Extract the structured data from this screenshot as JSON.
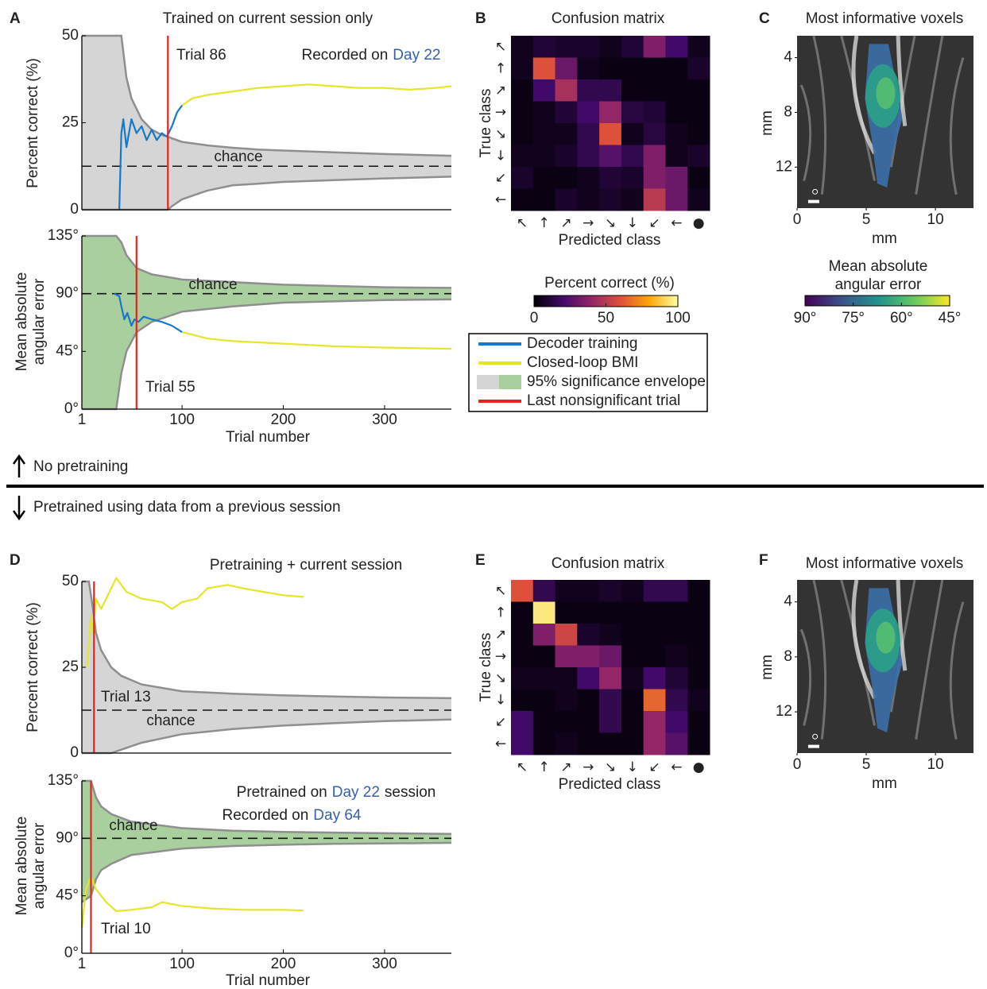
{
  "chart_data": [
    {
      "type": "line",
      "panel": "A",
      "title": "Trained on current session only",
      "y_label": [
        "Percent correct (%)"
      ],
      "xlim": [
        1,
        366
      ],
      "ylim": [
        0,
        50
      ],
      "yticks": [
        0,
        25,
        50
      ],
      "envelope": {
        "color": "#d5d5d5",
        "edge_color": "#8f8f8f",
        "x": [
          1,
          30,
          40,
          45,
          50,
          60,
          70,
          80,
          86,
          90,
          100,
          125,
          150,
          175,
          200,
          250,
          300,
          366
        ],
        "upper": [
          50,
          50,
          50,
          38,
          32,
          26,
          23,
          21.5,
          21,
          20.5,
          19.5,
          18.5,
          17.8,
          17.3,
          17,
          16.5,
          16,
          15.5
        ],
        "lower": [
          0,
          0,
          0,
          0,
          0,
          0,
          0,
          0,
          0,
          1,
          3,
          5.5,
          7,
          7.5,
          8,
          8.5,
          9,
          9.5
        ]
      },
      "reference_line": {
        "value": 12.5,
        "label": "chance"
      },
      "vline": {
        "value": 86,
        "label": "Trial 86",
        "color": "#e8231c"
      },
      "annotations": [
        [
          {
            "text": "Recorded on"
          },
          {
            "text": "Day 22",
            "color": "#3561ae"
          }
        ]
      ],
      "series": [
        {
          "color": "#1878c8",
          "x": [
            38,
            40,
            42,
            45,
            50,
            55,
            60,
            65,
            70,
            75,
            80,
            85,
            90,
            95,
            100
          ],
          "values": [
            0,
            22,
            26,
            18,
            26,
            22,
            24,
            20,
            23,
            20,
            22,
            21,
            24,
            28,
            30
          ]
        },
        {
          "color": "#e5e52a",
          "x": [
            100,
            110,
            125,
            150,
            175,
            200,
            225,
            250,
            275,
            300,
            325,
            350,
            366
          ],
          "values": [
            30,
            32,
            33,
            34,
            35,
            35.5,
            36,
            35.5,
            35,
            35,
            34.5,
            35,
            35.5
          ]
        }
      ]
    },
    {
      "type": "line",
      "y_label": [
        "Mean absolute",
        "angular error"
      ],
      "x_label": "Trial number",
      "xlim": [
        1,
        366
      ],
      "ylim": [
        0,
        135
      ],
      "xticks": [
        1,
        100,
        200,
        300
      ],
      "yticks": [
        {
          "value": 0,
          "label": "0°"
        },
        {
          "value": 45,
          "label": "45°"
        },
        {
          "value": 90,
          "label": "90°"
        },
        {
          "value": 135,
          "label": "135°"
        }
      ],
      "envelope": {
        "color": "#a9cf9f",
        "edge_color": "#8f8f8f",
        "x": [
          1,
          30,
          35,
          40,
          45,
          55,
          70,
          100,
          150,
          200,
          250,
          300,
          366
        ],
        "upper": [
          135,
          135,
          135,
          130,
          120,
          110,
          105,
          101,
          99,
          97,
          96,
          95,
          94.5
        ],
        "lower": [
          0,
          0,
          0,
          28,
          45,
          60,
          68,
          76,
          80,
          83,
          84,
          85,
          85.5
        ]
      },
      "reference_line": {
        "value": 90,
        "label": "chance"
      },
      "vline": {
        "value": 55,
        "label": "Trial 55",
        "color": "#e8231c"
      },
      "series": [
        {
          "color": "#1878c8",
          "x": [
            33,
            38,
            40,
            43,
            46,
            50,
            53,
            57,
            62,
            70,
            80,
            90,
            100
          ],
          "values": [
            90,
            88,
            80,
            70,
            75,
            65,
            70,
            68,
            72,
            70,
            68,
            65,
            60
          ]
        },
        {
          "color": "#e5e52a",
          "x": [
            100,
            110,
            125,
            150,
            200,
            250,
            300,
            366
          ],
          "values": [
            60,
            58,
            55,
            53,
            51,
            49,
            48,
            47
          ]
        }
      ]
    },
    {
      "type": "heatmap",
      "panel": "B",
      "title": "Confusion matrix",
      "x_label": "Predicted class",
      "y_label": "True class",
      "x_categories": [
        "↖",
        "↑",
        "↗",
        "→",
        "↘",
        "↓",
        "↙",
        "←",
        "●"
      ],
      "y_categories": [
        "↖",
        "↑",
        "↗",
        "→",
        "↘",
        "↓",
        "↙",
        "←"
      ],
      "clim": [
        0,
        100
      ],
      "colormap": "inferno",
      "values": [
        [
          5,
          10,
          8,
          8,
          5,
          10,
          35,
          20,
          5
        ],
        [
          5,
          60,
          30,
          5,
          3,
          3,
          3,
          3,
          8
        ],
        [
          3,
          20,
          45,
          15,
          15,
          3,
          3,
          3,
          3
        ],
        [
          3,
          5,
          10,
          20,
          40,
          12,
          10,
          3,
          3
        ],
        [
          3,
          5,
          5,
          15,
          60,
          5,
          12,
          5,
          3
        ],
        [
          5,
          5,
          8,
          15,
          25,
          15,
          35,
          5,
          8
        ],
        [
          8,
          3,
          3,
          5,
          10,
          8,
          35,
          30,
          3
        ],
        [
          3,
          3,
          8,
          5,
          8,
          5,
          50,
          30,
          5
        ]
      ],
      "colorbar": {
        "label": "Percent correct (%)",
        "ticks": [
          0,
          50,
          100
        ]
      }
    },
    {
      "type": "image",
      "panel": "C",
      "title": "Most informative voxels",
      "x_label": "mm",
      "y_label": "mm",
      "xlim": [
        0,
        12.75
      ],
      "ylim": [
        2.4,
        15
      ],
      "xticks": [
        0,
        5,
        10
      ],
      "yticks": [
        4,
        8,
        12
      ],
      "colorbar": {
        "label": [
          "Mean absolute",
          "angular error"
        ],
        "lim": [
          90,
          45
        ],
        "colormap": "viridis",
        "ticks": [
          {
            "value": 90,
            "label": "90°"
          },
          {
            "value": 75,
            "label": "75°"
          },
          {
            "value": 60,
            "label": "60°"
          },
          {
            "value": 45,
            "label": "45°"
          }
        ]
      }
    },
    {
      "type": "line",
      "panel": "D",
      "title": "Pretraining + current session",
      "y_label": [
        "Percent correct (%)"
      ],
      "xlim": [
        1,
        366
      ],
      "ylim": [
        0,
        50
      ],
      "yticks": [
        0,
        25,
        50
      ],
      "envelope": {
        "color": "#d5d5d5",
        "edge_color": "#8f8f8f",
        "x": [
          1,
          8,
          12,
          15,
          20,
          30,
          40,
          60,
          100,
          150,
          200,
          250,
          300,
          366
        ],
        "upper": [
          50,
          50,
          42,
          35,
          30,
          25,
          22.5,
          20,
          18,
          17.3,
          16.8,
          16.5,
          16.2,
          16
        ],
        "lower": [
          0,
          0,
          0,
          0,
          0,
          0,
          1,
          3,
          5.5,
          7,
          8,
          8.7,
          9.3,
          9.8
        ]
      },
      "reference_line": {
        "value": 12.5,
        "label": "chance"
      },
      "vline": {
        "value": 13,
        "label": "Trial 13",
        "color": "#e8231c"
      },
      "series": [
        {
          "color": "#e5e52a",
          "x": [
            6,
            8,
            10,
            12,
            15,
            20,
            30,
            35,
            45,
            60,
            80,
            90,
            100,
            115,
            125,
            145,
            160,
            180,
            200,
            220
          ],
          "values": [
            25,
            32,
            40,
            35,
            45,
            42,
            48,
            51,
            47,
            45,
            44,
            42,
            44,
            45,
            48,
            49,
            48,
            47,
            46,
            45.5
          ]
        }
      ]
    },
    {
      "type": "line",
      "y_label": [
        "Mean absolute",
        "angular error"
      ],
      "x_label": "Trial number",
      "xlim": [
        1,
        366
      ],
      "ylim": [
        0,
        135
      ],
      "xticks": [
        1,
        100,
        200,
        300
      ],
      "yticks": [
        {
          "value": 0,
          "label": "0°"
        },
        {
          "value": 45,
          "label": "45°"
        },
        {
          "value": 90,
          "label": "90°"
        },
        {
          "value": 135,
          "label": "135°"
        }
      ],
      "envelope": {
        "color": "#a9cf9f",
        "edge_color": "#8f8f8f",
        "x": [
          1,
          10,
          15,
          20,
          30,
          50,
          100,
          150,
          200,
          250,
          300,
          366
        ],
        "upper": [
          135,
          135,
          122,
          115,
          109,
          103,
          98,
          96,
          95,
          94.5,
          94,
          93.5
        ],
        "lower": [
          40,
          45,
          58,
          65,
          70,
          77,
          82,
          84,
          85,
          85.7,
          86,
          86.5
        ]
      },
      "reference_line": {
        "value": 90,
        "label": "chance"
      },
      "vline": {
        "value": 10,
        "label": "Trial 10",
        "color": "#e8231c"
      },
      "annotations": [
        [
          {
            "text": "Pretrained on"
          },
          {
            "text": "Day 22",
            "color": "#3561ae"
          },
          {
            "text": "session"
          }
        ],
        [
          {
            "text": "Recorded on"
          },
          {
            "text": "Day 64",
            "color": "#3561ae"
          }
        ]
      ],
      "series": [
        {
          "color": "#e5e52a",
          "x": [
            1,
            5,
            10,
            15,
            25,
            35,
            50,
            70,
            80,
            100,
            130,
            160,
            200,
            220
          ],
          "values": [
            20,
            50,
            60,
            50,
            40,
            33,
            34,
            36,
            40,
            37,
            35,
            34,
            34,
            33.5
          ]
        }
      ]
    },
    {
      "type": "heatmap",
      "panel": "E",
      "title": "Confusion matrix",
      "x_label": "Predicted class",
      "y_label": "True class",
      "x_categories": [
        "↖",
        "↑",
        "↗",
        "→",
        "↘",
        "↓",
        "↙",
        "←",
        "●"
      ],
      "y_categories": [
        "↖",
        "↑",
        "↗",
        "→",
        "↘",
        "↓",
        "↙",
        "←"
      ],
      "clim": [
        0,
        100
      ],
      "colormap": "inferno",
      "values": [
        [
          60,
          15,
          5,
          5,
          8,
          5,
          15,
          15,
          3
        ],
        [
          3,
          95,
          3,
          3,
          3,
          3,
          3,
          3,
          3
        ],
        [
          3,
          35,
          55,
          8,
          5,
          3,
          3,
          3,
          3
        ],
        [
          3,
          3,
          35,
          35,
          30,
          3,
          3,
          5,
          3
        ],
        [
          5,
          5,
          5,
          20,
          40,
          5,
          20,
          10,
          3
        ],
        [
          3,
          3,
          5,
          3,
          15,
          3,
          65,
          15,
          5
        ],
        [
          20,
          3,
          3,
          3,
          15,
          3,
          40,
          20,
          3
        ],
        [
          20,
          3,
          5,
          3,
          3,
          3,
          40,
          25,
          3
        ]
      ]
    },
    {
      "type": "image",
      "panel": "F",
      "title": "Most informative voxels",
      "x_label": "mm",
      "y_label": "mm",
      "xlim": [
        0,
        12.75
      ],
      "ylim": [
        2.4,
        15
      ],
      "xticks": [
        0,
        5,
        10
      ],
      "yticks": [
        4,
        8,
        12
      ]
    }
  ],
  "legend": [
    {
      "label": "Decoder training",
      "color": "#1878c8"
    },
    {
      "label": "Closed-loop BMI",
      "color": "#e5e52a"
    },
    {
      "label": "95% significance envelope",
      "colors": [
        "#d5d5d5",
        "#a9cf9f"
      ]
    },
    {
      "label": "Last nonsignificant trial",
      "color": "#e8231c"
    }
  ],
  "sections": [
    "No pretraining",
    "Pretrained using data from a previous session"
  ]
}
